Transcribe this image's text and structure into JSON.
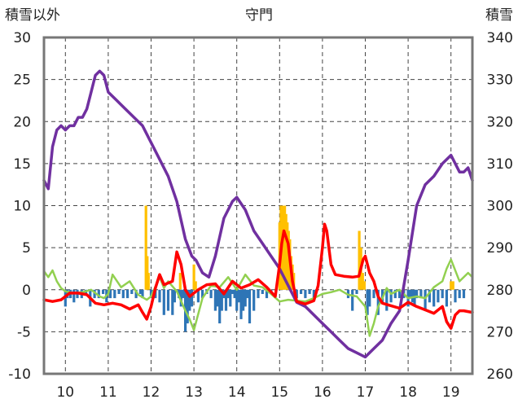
{
  "chart_data": {
    "type": "line",
    "title": "守門",
    "left_axis_label": "積雪以外",
    "right_axis_label": "積雪",
    "x_range": [
      9.5,
      19.5
    ],
    "x_ticks": [
      "10",
      "11",
      "12",
      "13",
      "14",
      "15",
      "16",
      "17",
      "18",
      "19"
    ],
    "y_left_range": [
      -10,
      30
    ],
    "y_left_ticks": [
      "30",
      "25",
      "20",
      "15",
      "10",
      "5",
      "0",
      "-5",
      "-10"
    ],
    "y_right_range": [
      260,
      340
    ],
    "y_right_ticks": [
      "340",
      "330",
      "320",
      "310",
      "300",
      "290",
      "280",
      "270",
      "260"
    ],
    "grid": true,
    "colors": {
      "snow_depth": "#7030a0",
      "temperature": "#ff0000",
      "green_series": "#92d050",
      "precip_bars": "#ffc000",
      "negative_bars": "#2e75b6",
      "grid": "#444444",
      "frame": "#777777"
    },
    "series": [
      {
        "axis": "right",
        "kind": "line",
        "x": [
          9.5,
          9.6,
          9.7,
          9.8,
          9.9,
          10.0,
          10.1,
          10.2,
          10.3,
          10.4,
          10.5,
          10.6,
          10.7,
          10.8,
          10.9,
          11.0,
          11.2,
          11.4,
          11.6,
          11.8,
          12.0,
          12.2,
          12.4,
          12.6,
          12.8,
          12.95,
          13.05,
          13.2,
          13.35,
          13.5,
          13.7,
          13.9,
          14.0,
          14.2,
          14.4,
          14.6,
          14.8,
          15.0,
          15.1,
          15.2,
          15.4,
          15.6,
          15.8,
          16.0,
          16.2,
          16.4,
          16.6,
          16.8,
          17.0,
          17.2,
          17.4,
          17.6,
          17.8,
          18.0,
          18.2,
          18.4,
          18.6,
          18.8,
          19.0,
          19.1,
          19.2,
          19.3,
          19.4,
          19.5
        ],
        "values": [
          306,
          304,
          314,
          318,
          319,
          318,
          319,
          319,
          321,
          321,
          323,
          327,
          331,
          332,
          331,
          327,
          325,
          323,
          321,
          319,
          315,
          311,
          307,
          301,
          292,
          288,
          287,
          284,
          283,
          288,
          297,
          301,
          302,
          299,
          294,
          291,
          288,
          285,
          283,
          281,
          277,
          276,
          274,
          272,
          270,
          268,
          266,
          265,
          264,
          266,
          268,
          272,
          275,
          287,
          300,
          305,
          307,
          310,
          312,
          310,
          308,
          308,
          309,
          306
        ]
      },
      {
        "axis": "left",
        "kind": "line",
        "x": [
          9.5,
          9.7,
          9.9,
          10.1,
          10.3,
          10.5,
          10.7,
          10.9,
          11.1,
          11.3,
          11.5,
          11.7,
          11.8,
          11.9,
          12.0,
          12.1,
          12.2,
          12.3,
          12.5,
          12.6,
          12.7,
          12.8,
          12.9,
          13.1,
          13.3,
          13.5,
          13.7,
          13.9,
          14.1,
          14.3,
          14.5,
          14.7,
          14.9,
          15.0,
          15.05,
          15.1,
          15.2,
          15.3,
          15.4,
          15.6,
          15.8,
          15.9,
          16.0,
          16.05,
          16.1,
          16.2,
          16.3,
          16.5,
          16.7,
          16.85,
          16.95,
          17.0,
          17.1,
          17.2,
          17.3,
          17.4,
          17.6,
          17.8,
          18.0,
          18.2,
          18.4,
          18.6,
          18.8,
          18.9,
          19.0,
          19.1,
          19.2,
          19.3,
          19.4,
          19.5
        ],
        "values": [
          -1.2,
          -1.4,
          -1.2,
          -0.4,
          -0.4,
          -0.6,
          -1.6,
          -1.8,
          -1.6,
          -1.8,
          -2.3,
          -1.8,
          -2.7,
          -3.5,
          -2.0,
          0.2,
          1.8,
          0.6,
          1.0,
          4.5,
          3.0,
          0.0,
          -0.8,
          0.0,
          0.6,
          0.7,
          -0.5,
          1.0,
          0.2,
          0.6,
          1.2,
          0.3,
          -0.8,
          3.0,
          5.5,
          7.0,
          5.5,
          1.0,
          -1.4,
          -1.7,
          -1.3,
          0.5,
          5.0,
          7.8,
          7.0,
          3.0,
          1.8,
          1.6,
          1.5,
          1.6,
          3.6,
          4.0,
          2.0,
          1.0,
          -0.8,
          -1.6,
          -1.9,
          -2.2,
          -1.5,
          -2.0,
          -2.4,
          -2.8,
          -2.0,
          -3.8,
          -4.6,
          -3.0,
          -2.5,
          -2.5,
          -2.6,
          -2.7
        ]
      },
      {
        "axis": "left",
        "kind": "line",
        "x": [
          9.5,
          9.6,
          9.7,
          9.8,
          9.9,
          10.0,
          10.2,
          10.4,
          10.6,
          10.8,
          10.9,
          11.0,
          11.1,
          11.3,
          11.5,
          11.7,
          11.9,
          12.0,
          12.2,
          12.3,
          12.4,
          12.6,
          12.8,
          12.9,
          13.0,
          13.2,
          13.4,
          13.6,
          13.8,
          14.0,
          14.2,
          14.4,
          14.6,
          14.8,
          15.0,
          15.2,
          15.4,
          15.6,
          15.8,
          16.0,
          16.2,
          16.4,
          16.6,
          16.8,
          17.0,
          17.1,
          17.2,
          17.3,
          17.4,
          17.5,
          17.6,
          17.8,
          18.0,
          18.2,
          18.4,
          18.6,
          18.8,
          18.9,
          19.0,
          19.2,
          19.4,
          19.5
        ],
        "values": [
          2.2,
          1.5,
          2.3,
          1.0,
          0.2,
          -0.2,
          -0.4,
          -0.3,
          0.0,
          -0.8,
          -1.0,
          -0.5,
          1.8,
          0.3,
          1.0,
          -0.6,
          -1.2,
          -0.8,
          1.5,
          0.2,
          1.0,
          -0.2,
          -2.5,
          -3.5,
          -4.8,
          -1.0,
          0.5,
          0.3,
          1.5,
          0.0,
          1.8,
          0.5,
          0.3,
          -0.5,
          -1.4,
          -1.2,
          -1.3,
          -1.4,
          -1.0,
          -0.5,
          -0.3,
          0.0,
          -0.6,
          -0.8,
          -2.0,
          -5.5,
          -4.0,
          -2.0,
          -1.0,
          0.2,
          -0.5,
          0.0,
          -1.0,
          -0.8,
          -1.0,
          0.3,
          1.0,
          2.5,
          3.6,
          1.0,
          2.0,
          1.5
        ]
      },
      {
        "axis": "left",
        "kind": "bar",
        "x": [
          11.88,
          11.91,
          11.94,
          12.68,
          13.0,
          13.04,
          15.0,
          15.03,
          15.06,
          15.09,
          15.12,
          15.15,
          15.18,
          15.21,
          15.24,
          15.27,
          15.3,
          15.33,
          16.86,
          16.9,
          16.94,
          16.98,
          19.0,
          19.05
        ],
        "values": [
          10,
          4,
          2,
          2,
          3,
          1,
          8,
          10,
          10,
          10,
          10,
          9,
          8,
          7,
          6,
          4,
          3,
          2,
          7,
          5,
          2,
          1,
          1,
          1
        ]
      },
      {
        "axis": "left",
        "kind": "bar",
        "x": [
          10.0,
          10.05,
          10.12,
          10.2,
          10.28,
          10.38,
          10.48,
          10.58,
          10.68,
          10.78,
          10.88,
          10.96,
          11.05,
          11.15,
          11.25,
          11.35,
          11.45,
          11.55,
          11.65,
          11.75,
          11.8,
          12.0,
          12.05,
          12.1,
          12.2,
          12.3,
          12.4,
          12.5,
          12.55,
          12.65,
          12.7,
          12.75,
          12.8,
          12.85,
          12.9,
          12.95,
          13.1,
          13.2,
          13.3,
          13.4,
          13.5,
          13.55,
          13.6,
          13.65,
          13.7,
          13.75,
          13.8,
          13.85,
          13.9,
          13.95,
          14.0,
          14.05,
          14.1,
          14.15,
          14.2,
          14.25,
          14.3,
          14.4,
          14.5,
          14.6,
          14.7,
          14.8,
          15.4,
          15.5,
          15.6,
          15.7,
          15.8,
          16.6,
          16.7,
          16.8,
          17.05,
          17.1,
          17.2,
          17.3,
          17.4,
          17.5,
          17.6,
          17.7,
          17.8,
          17.9,
          18.0,
          18.05,
          18.1,
          18.15,
          18.2,
          18.3,
          18.4,
          18.5,
          18.6,
          18.7,
          18.8,
          18.9,
          19.1,
          19.2,
          19.3
        ],
        "values": [
          -2.0,
          -1.0,
          -1.0,
          -1.5,
          -1.0,
          -1.0,
          -0.5,
          -2.0,
          -1.0,
          -1.0,
          -0.5,
          -1.5,
          -1.0,
          -1.0,
          -0.5,
          -1.0,
          -1.0,
          -0.5,
          -1.0,
          -0.5,
          -1.0,
          -1.0,
          -0.5,
          -1.0,
          -1.5,
          -3.0,
          -2.5,
          -3.0,
          -1.5,
          -1.0,
          -2.0,
          -1.0,
          -5.0,
          -4.0,
          -2.5,
          -2.0,
          -1.5,
          -1.0,
          -0.5,
          -1.0,
          -2.5,
          -2.0,
          -4.0,
          -2.5,
          -1.0,
          -2.5,
          -1.0,
          -2.0,
          -0.5,
          -1.0,
          -2.5,
          -1.5,
          -3.5,
          -2.5,
          -2.0,
          -1.0,
          -4.0,
          -2.5,
          -1.0,
          -0.5,
          -1.0,
          -0.5,
          -1.0,
          -0.5,
          -1.0,
          -0.5,
          -1.0,
          -1.0,
          -2.5,
          -0.5,
          -3.0,
          -2.0,
          -1.0,
          -3.0,
          -1.5,
          -2.5,
          -1.5,
          -1.0,
          -1.0,
          -1.0,
          -2.0,
          -1.0,
          -1.5,
          -2.0,
          -1.0,
          -1.0,
          -2.5,
          -1.5,
          -2.0,
          -1.5,
          -1.0,
          -2.0,
          -1.5,
          -1.0,
          -1.0
        ]
      }
    ]
  }
}
